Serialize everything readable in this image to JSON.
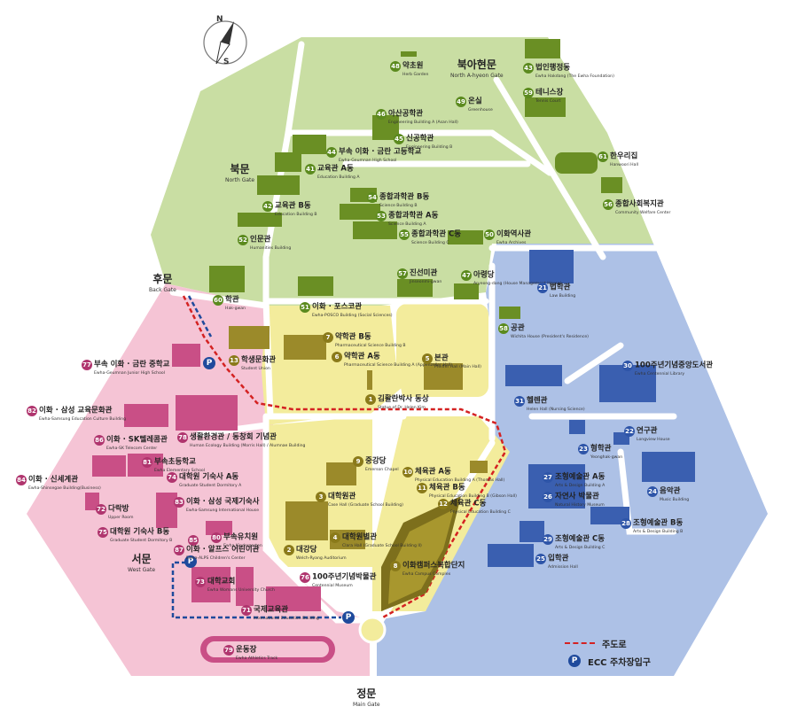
{
  "compass": {
    "n": "N",
    "s": "S"
  },
  "gates": {
    "north_a_hyeon": {
      "ko": "북아현문",
      "en": "North A-hyeon Gate"
    },
    "north": {
      "ko": "북문",
      "en": "North Gate"
    },
    "back": {
      "ko": "후문",
      "en": "Back Gate"
    },
    "west": {
      "ko": "서문",
      "en": "West Gate"
    },
    "main": {
      "ko": "정문",
      "en": "Main Gate"
    }
  },
  "buildings": [
    {
      "id": "b48",
      "num": "48",
      "ko": "약초원",
      "en": "Herb Garden",
      "c": "green"
    },
    {
      "id": "b43",
      "num": "43",
      "ko": "법인행정동",
      "en": "Ewha Hakdang (The Ewha Foundation)",
      "c": "green"
    },
    {
      "id": "b49",
      "num": "49",
      "ko": "온실",
      "en": "Greenhouse",
      "c": "green"
    },
    {
      "id": "b59",
      "num": "59",
      "ko": "테니스장",
      "en": "Tennis Court",
      "c": "green"
    },
    {
      "id": "b46",
      "num": "46",
      "ko": "아산공학관",
      "en": "Engineering Building A (Asan Hall)",
      "c": "green"
    },
    {
      "id": "b45",
      "num": "45",
      "ko": "신공학관",
      "en": "Engineering Building B",
      "c": "green"
    },
    {
      "id": "b44",
      "num": "44",
      "ko": "부속 이화 · 금란 고등학교",
      "en": "Ewha-Geumnan High School",
      "c": "green"
    },
    {
      "id": "b41",
      "num": "41",
      "ko": "교육관 A동",
      "en": "Education Building A",
      "c": "green"
    },
    {
      "id": "b61",
      "num": "61",
      "ko": "한우리집",
      "en": "Hanwoori Hall",
      "c": "green"
    },
    {
      "id": "b56",
      "num": "56",
      "ko": "종합사회복지관",
      "en": "Community Welfare Center",
      "c": "green"
    },
    {
      "id": "b54",
      "num": "54",
      "ko": "종합과학관 B동",
      "en": "Science Building B",
      "c": "green"
    },
    {
      "id": "b53",
      "num": "53",
      "ko": "종합과학관 A동",
      "en": "Science Building A",
      "c": "green"
    },
    {
      "id": "b55",
      "num": "55",
      "ko": "종합과학관 C동",
      "en": "Science Building C",
      "c": "green"
    },
    {
      "id": "b42",
      "num": "42",
      "ko": "교육관 B동",
      "en": "Education Building B",
      "c": "green"
    },
    {
      "id": "b52",
      "num": "52",
      "ko": "인문관",
      "en": "Humanities Building",
      "c": "green"
    },
    {
      "id": "b50",
      "num": "50",
      "ko": "이화역사관",
      "en": "Ewha Archives",
      "c": "green"
    },
    {
      "id": "b57",
      "num": "57",
      "ko": "진선미관",
      "en": "Jinseonmi-gwan",
      "c": "green"
    },
    {
      "id": "b47",
      "num": "47",
      "ko": "아령당",
      "en": "Aryeong-dang (House Management House)",
      "c": "green"
    },
    {
      "id": "b60",
      "num": "60",
      "ko": "학관",
      "en": "Hak-gwan",
      "c": "green"
    },
    {
      "id": "b51",
      "num": "51",
      "ko": "이화 · 포스코관",
      "en": "Ewha-POSCO Building (Social Sciences)",
      "c": "green"
    },
    {
      "id": "b58",
      "num": "58",
      "ko": "공관",
      "en": "Wichita House (President's Residence)",
      "c": "green"
    },
    {
      "id": "b21",
      "num": "21",
      "ko": "법학관",
      "en": "Law Building",
      "c": "blue"
    },
    {
      "id": "b7",
      "num": "7",
      "ko": "약학관 B동",
      "en": "Pharmaceutical Science Building B",
      "c": "yellow"
    },
    {
      "id": "b13",
      "num": "13",
      "ko": "학생문화관",
      "en": "Student Union",
      "c": "yellow"
    },
    {
      "id": "b6",
      "num": "6",
      "ko": "약학관 A동",
      "en": "Pharmaceutical Science Building A (Appenzeller Hall)",
      "c": "yellow"
    },
    {
      "id": "b5",
      "num": "5",
      "ko": "본관",
      "en": "Pfeiffer Hall (Main Hall)",
      "c": "yellow"
    },
    {
      "id": "b1",
      "num": "1",
      "ko": "김활란박사 동상",
      "en": "Statue of Dr. Helen Kim",
      "c": "yellow"
    },
    {
      "id": "b30",
      "num": "30",
      "ko": "100주년기념중앙도서관",
      "en": "Ewha Centennial Library",
      "c": "blue"
    },
    {
      "id": "b31",
      "num": "31",
      "ko": "헬렌관",
      "en": "Helen Hall (Nursing Science)",
      "c": "blue"
    },
    {
      "id": "b77",
      "num": "77",
      "ko": "부속 이화 · 금란 중학교",
      "en": "Ewha-Geumnan Junior High School",
      "c": "pink"
    },
    {
      "id": "b82",
      "num": "82",
      "ko": "이화 · 삼성 교육문화관",
      "en": "Ewha-Samsung Education Culture Building",
      "c": "pink"
    },
    {
      "id": "b86",
      "num": "86",
      "ko": "이화 · SK텔레콤관",
      "en": "Ewha-SK Telecom Center",
      "c": "pink"
    },
    {
      "id": "b78",
      "num": "78",
      "ko": "생활환경관 / 동창회 기념관",
      "en": "Human Ecology Building (Morris Hall) / Alumnae Building",
      "c": "pink"
    },
    {
      "id": "b81",
      "num": "81",
      "ko": "부속초등학교",
      "en": "Ewha Elementary School",
      "c": "pink"
    },
    {
      "id": "b84",
      "num": "84",
      "ko": "이화 · 신세계관",
      "en": "Ewha-Shinsegae Building(Business)",
      "c": "pink"
    },
    {
      "id": "b74",
      "num": "74",
      "ko": "대학원 기숙사 A동",
      "en": "Graduate Student Dormitory A",
      "c": "pink"
    },
    {
      "id": "b72",
      "num": "72",
      "ko": "다락방",
      "en": "Upper Room",
      "c": "pink"
    },
    {
      "id": "b83",
      "num": "83",
      "ko": "이화 · 삼성 국제기숙사",
      "en": "Ewha-Samsung International House",
      "c": "pink"
    },
    {
      "id": "b75",
      "num": "75",
      "ko": "대학원 기숙사 B동",
      "en": "Graduate Student Dormitory B",
      "c": "pink"
    },
    {
      "id": "b85",
      "num": "85",
      "ko": "",
      "en": "",
      "c": "pink"
    },
    {
      "id": "b80",
      "num": "80",
      "ko": "부속유치원",
      "en": "Ewha Kindergarten",
      "c": "pink"
    },
    {
      "id": "b87",
      "num": "87",
      "ko": "이화 · 알프스 어린이관",
      "en": "Ewha-ALPS Children's Center",
      "c": "pink"
    },
    {
      "id": "b73",
      "num": "73",
      "ko": "대학교회",
      "en": "Ewha Womans University Church",
      "c": "pink"
    },
    {
      "id": "b71",
      "num": "71",
      "ko": "국제교육관",
      "en": "International Education Building",
      "c": "pink"
    },
    {
      "id": "b76",
      "num": "76",
      "ko": "100주년기념박물관",
      "en": "Centennial Museum",
      "c": "pink"
    },
    {
      "id": "b79",
      "num": "79",
      "ko": "운동장",
      "en": "Ewha Athletics Track",
      "c": "pink"
    },
    {
      "id": "b9",
      "num": "9",
      "ko": "중강당",
      "en": "Emerson Chapel",
      "c": "yellow"
    },
    {
      "id": "b3",
      "num": "3",
      "ko": "대학원관",
      "en": "Case Hall (Graduate School Building)",
      "c": "yellow"
    },
    {
      "id": "b2",
      "num": "2",
      "ko": "대강당",
      "en": "Welch-Ryang Auditorium",
      "c": "yellow"
    },
    {
      "id": "b4",
      "num": "4",
      "ko": "대학원별관",
      "en": "Clara Hall (Graduate School Building II)",
      "c": "yellow"
    },
    {
      "id": "b10",
      "num": "10",
      "ko": "체육관 A동",
      "en": "Physical Education Building A (Thomas Hall)",
      "c": "yellow"
    },
    {
      "id": "b11",
      "num": "11",
      "ko": "체육관 B동",
      "en": "Physical Education Building B (Gibson Hall)",
      "c": "yellow"
    },
    {
      "id": "b12",
      "num": "12",
      "ko": "체육관 C동",
      "en": "Physical Education Building C",
      "c": "yellow"
    },
    {
      "id": "b8",
      "num": "8",
      "ko": "이화캠퍼스복합단지",
      "en": "Ewha Campus Complex",
      "c": "yellow"
    },
    {
      "id": "b22",
      "num": "22",
      "ko": "연구관",
      "en": "Longview House",
      "c": "blue"
    },
    {
      "id": "b23",
      "num": "23",
      "ko": "형학관",
      "en": "Yeonghak-gwan",
      "c": "blue"
    },
    {
      "id": "b27",
      "num": "27",
      "ko": "조형예술관 A동",
      "en": "Arts & Design Building A",
      "c": "blue"
    },
    {
      "id": "b26",
      "num": "26",
      "ko": "자연사 박물관",
      "en": "Natural History Museum",
      "c": "blue"
    },
    {
      "id": "b24",
      "num": "24",
      "ko": "음악관",
      "en": "Music Building",
      "c": "blue"
    },
    {
      "id": "b28",
      "num": "28",
      "ko": "조형예술관 B동",
      "en": "Arts & Design Building B",
      "c": "blue"
    },
    {
      "id": "b29",
      "num": "29",
      "ko": "조형예술관 C동",
      "en": "Arts & Design Building C",
      "c": "blue"
    },
    {
      "id": "b25",
      "num": "25",
      "ko": "입학관",
      "en": "Admission Hall",
      "c": "blue"
    }
  ],
  "legend": {
    "main_road": "주도로",
    "parking": "ECC 주차장입구",
    "parking_symbol": "P"
  },
  "colors": {
    "green_zone": "#c7dda0",
    "yellow_zone": "#f2ec9a",
    "blue_zone": "#aec2e6",
    "pink_zone": "#f4c3d5",
    "road": "#ffffff",
    "main_road": "#d42222",
    "parking": "#1f4a9c"
  }
}
